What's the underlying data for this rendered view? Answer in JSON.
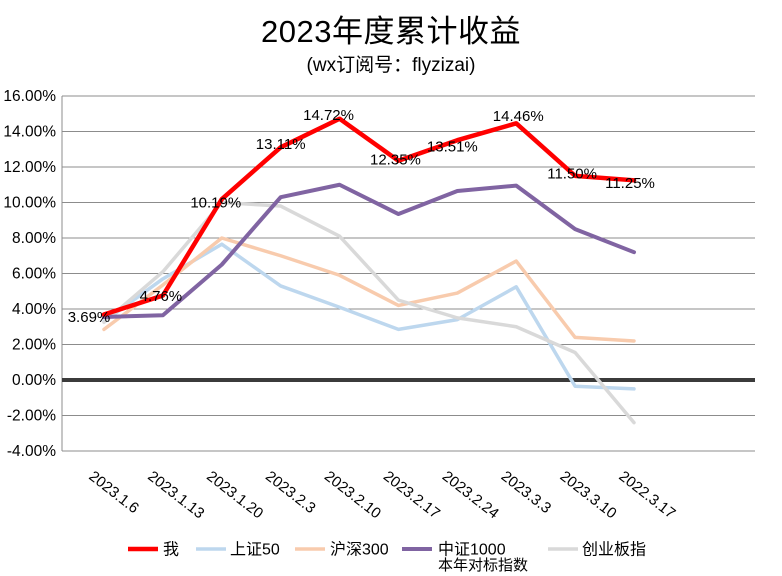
{
  "title": "2023年度累计收益",
  "subtitle": "(wx订阅号：flyzizai)",
  "chart_data": {
    "type": "line",
    "title": "2023年度累计收益",
    "subtitle": "(wx订阅号：flyzizai)",
    "categories": [
      "2023.1.6",
      "2023.1.13",
      "2023.1.20",
      "2023.2.3",
      "2023.2.10",
      "2023.2.17",
      "2023.2.24",
      "2023.3.3",
      "2023.3.10",
      "2022.3.17"
    ],
    "series": [
      {
        "name": "我",
        "color": "#FF0000",
        "stroke_width": 4.5,
        "values": [
          3.69,
          4.76,
          10.19,
          13.11,
          14.72,
          12.35,
          13.51,
          14.46,
          11.5,
          11.25
        ],
        "data_labels": [
          "3.69%",
          "4.76%",
          "10.19%",
          "13.11%",
          "14.72%",
          "12.35%",
          "13.51%",
          "14.46%",
          "11.50%",
          "11.25%"
        ],
        "label_offsets": [
          [
            -15,
            2
          ],
          [
            -2,
            0
          ],
          [
            -6,
            3
          ],
          [
            0,
            -4
          ],
          [
            -11,
            -4
          ],
          [
            -3,
            -2
          ],
          [
            -5,
            6
          ],
          [
            2,
            -8
          ],
          [
            -3,
            -3
          ],
          [
            -4,
            2
          ]
        ]
      },
      {
        "name": "上证50",
        "color": "#BDD7EE",
        "stroke_width": 3.5,
        "values": [
          3.3,
          5.7,
          7.65,
          5.3,
          4.1,
          2.85,
          3.4,
          5.25,
          -0.35,
          -0.5
        ]
      },
      {
        "name": "沪深300",
        "color": "#F8CBAD",
        "stroke_width": 3.5,
        "values": [
          2.85,
          5.35,
          8.0,
          7.0,
          5.9,
          4.2,
          4.9,
          6.7,
          2.4,
          2.2
        ]
      },
      {
        "name": "中证1000",
        "color": "#8064A2",
        "stroke_width": 4,
        "values": [
          3.55,
          3.65,
          6.5,
          10.3,
          11.0,
          9.35,
          10.65,
          10.95,
          8.5,
          7.2
        ]
      },
      {
        "name": "创业板指",
        "color": "#D9D9D9",
        "stroke_width": 3.5,
        "values": [
          3.25,
          6.1,
          10.0,
          9.8,
          8.1,
          4.5,
          3.5,
          3.0,
          1.55,
          -2.4
        ]
      }
    ],
    "ylim": [
      -4,
      16
    ],
    "ytick_step": 2,
    "y_ticks": [
      "16.00%",
      "14.00%",
      "12.00%",
      "10.00%",
      "8.00%",
      "6.00%",
      "4.00%",
      "2.00%",
      "0.00%",
      "-2.00%",
      "-4.00%"
    ],
    "x_label_rotation": 38,
    "grid": "horizontal",
    "zero_line": true,
    "legend_position": "bottom",
    "legend_note": "本年对标指数"
  },
  "colors": {
    "background": "#FFFFFF",
    "grid": "#8C8C8C",
    "zero_line": "#3B3B3B",
    "axis_text": "#000000",
    "label_text": "#000000"
  }
}
